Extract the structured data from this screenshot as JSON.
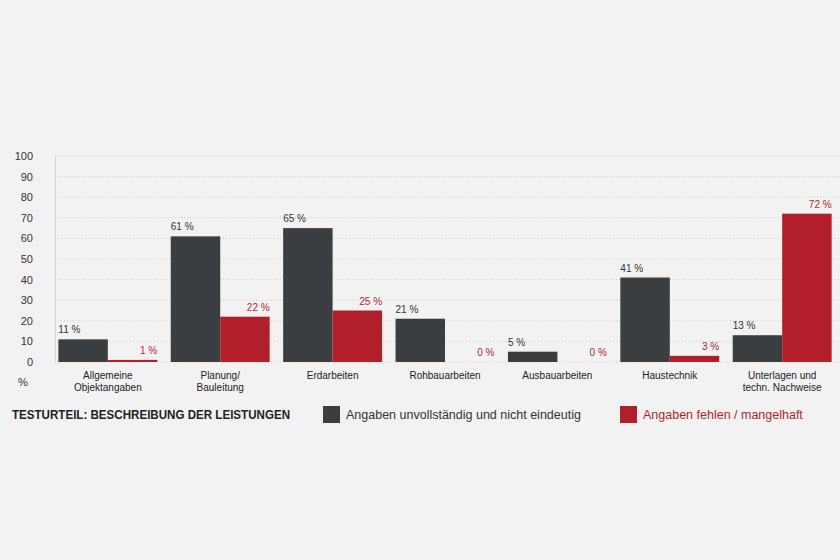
{
  "chart_data": {
    "type": "bar",
    "title": "TESTURTEIL: BESCHREIBUNG DER LEISTUNGEN",
    "y_label": "%",
    "categories": [
      "Allgemeine\nObjektangaben",
      "Planung/\nBauleitung",
      "Erdarbeiten",
      "Rohbauarbeiten",
      "Ausbauarbeiten",
      "Haustechnik",
      "Unterlagen und\ntechn. Nachweise"
    ],
    "series": [
      {
        "name": "Angaben unvollständig und nicht eindeutig",
        "color": "#3b3e41",
        "values": [
          11,
          61,
          65,
          21,
          5,
          41,
          13
        ],
        "value_labels": [
          "11 %",
          "61 %",
          "65 %",
          "21 %",
          "5 %",
          "41 %",
          "13 %"
        ]
      },
      {
        "name": "Angaben fehlen / mangelhaft",
        "color": "#b21f2b",
        "values": [
          1,
          22,
          25,
          0,
          0,
          3,
          72
        ],
        "value_labels": [
          "1 %",
          "22 %",
          "25 %",
          "0 %",
          "0 %",
          "3 %",
          "72 %"
        ]
      }
    ],
    "ylim": [
      0,
      100
    ],
    "yticks": [
      0,
      10,
      20,
      30,
      40,
      50,
      60,
      70,
      80,
      90,
      100
    ],
    "grid": true,
    "data_labels": true,
    "legend": "bottom"
  }
}
